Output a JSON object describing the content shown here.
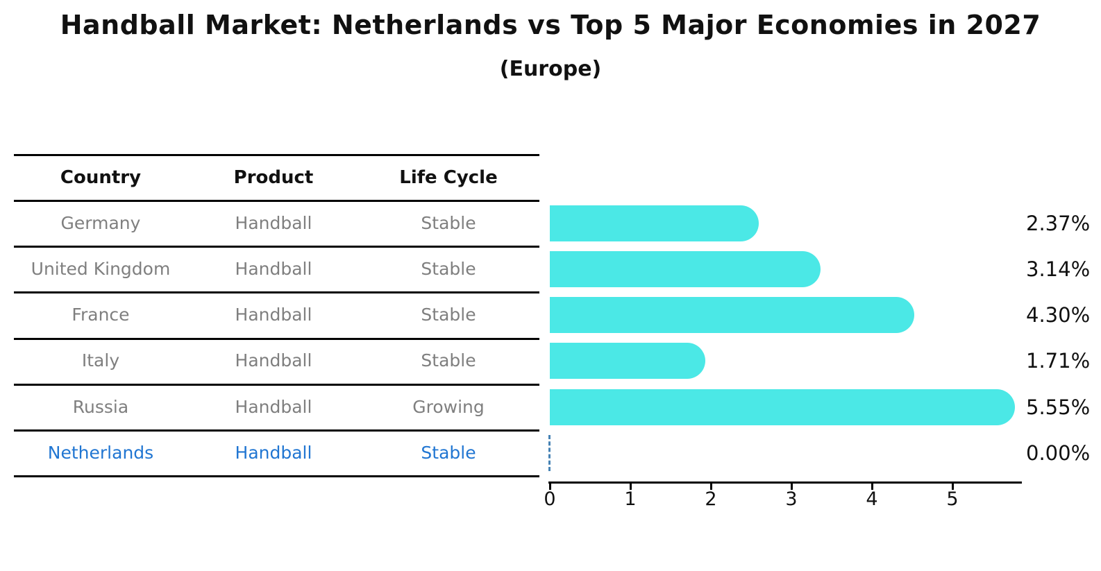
{
  "header": {
    "title": "Handball Market: Netherlands vs Top 5 Major Economies in 2027",
    "subtitle": "(Europe)"
  },
  "table": {
    "headers": [
      "Country",
      "Product",
      "Life Cycle"
    ],
    "rows": [
      {
        "country": "Germany",
        "product": "Handball",
        "life_cycle": "Stable",
        "highlight": false
      },
      {
        "country": "United Kingdom",
        "product": "Handball",
        "life_cycle": "Stable",
        "highlight": false
      },
      {
        "country": "France",
        "product": "Handball",
        "life_cycle": "Stable",
        "highlight": false
      },
      {
        "country": "Italy",
        "product": "Handball",
        "life_cycle": "Stable",
        "highlight": false
      },
      {
        "country": "Russia",
        "product": "Handball",
        "life_cycle": "Growing",
        "highlight": false
      },
      {
        "country": "Netherlands",
        "product": "Handball",
        "life_cycle": "Stable",
        "highlight": true
      }
    ]
  },
  "chart_data": {
    "type": "bar",
    "orientation": "horizontal",
    "title": "Handball Market: Netherlands vs Top 5 Major Economies in 2027",
    "subtitle": "(Europe)",
    "categories": [
      "Germany",
      "United Kingdom",
      "France",
      "Italy",
      "Russia",
      "Netherlands"
    ],
    "values": [
      2.37,
      3.14,
      4.3,
      1.71,
      5.55,
      0.0
    ],
    "value_labels": [
      "2.37%",
      "3.14%",
      "4.30%",
      "1.71%",
      "5.55%",
      "0.00%"
    ],
    "xticks": [
      "0",
      "1",
      "2",
      "3",
      "4",
      "5"
    ],
    "xlim": [
      0,
      5.85
    ],
    "grid": false,
    "legend": false,
    "bar_color": "#4be8e6",
    "zero_marker_color": "#4682b4",
    "highlight_text_color": "#2176d2",
    "table_text_color": "#7f7f7f",
    "axis_color": "#000000"
  }
}
